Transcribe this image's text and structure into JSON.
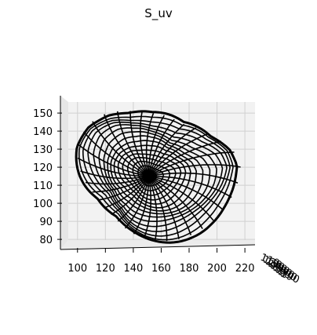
{
  "chart_data": {
    "type": "surface-wireframe-3d",
    "title": "S_uv",
    "xlabel": "",
    "ylabel": "",
    "zlabel": "",
    "x_ticks": [
      "100",
      "120",
      "140",
      "160",
      "180",
      "200",
      "220"
    ],
    "z_ticks": [
      "80",
      "90",
      "100",
      "110",
      "120",
      "130",
      "140",
      "150"
    ],
    "y_ticks": [
      "110",
      "120",
      "130",
      "140",
      "150",
      "160",
      "170",
      "180",
      "190"
    ],
    "xlim": [
      90,
      225
    ],
    "zlim": [
      77,
      157
    ],
    "surface": {
      "center_x": 151,
      "center_z": 115,
      "outline": [
        [
          136,
          151
        ],
        [
          154,
          150
        ],
        [
          175,
          144
        ],
        [
          196,
          137
        ],
        [
          211,
          130
        ],
        [
          217,
          121
        ],
        [
          214,
          109
        ],
        [
          206,
          98
        ],
        [
          195,
          89
        ],
        [
          180,
          82
        ],
        [
          160,
          79
        ],
        [
          143,
          82
        ],
        [
          127,
          92
        ],
        [
          115,
          103
        ],
        [
          103,
          116
        ],
        [
          100,
          131
        ],
        [
          107,
          143
        ],
        [
          121,
          150
        ]
      ],
      "rings": 16,
      "radial_lines": 36,
      "color": "#000000"
    },
    "grid": true,
    "pane_color": "#f2f2f2"
  }
}
